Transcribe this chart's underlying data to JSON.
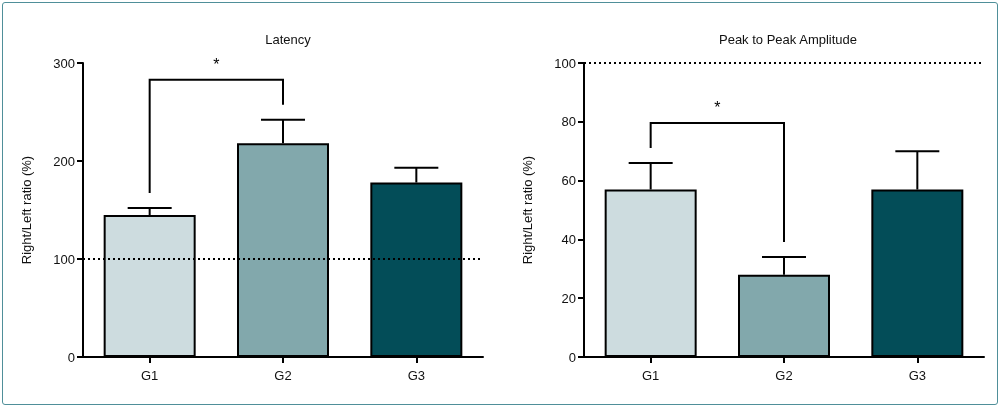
{
  "chart_data": [
    {
      "type": "bar",
      "title": "Latency",
      "ylabel": "Right/Left ratio (%)",
      "categories": [
        "G1",
        "G2",
        "G3"
      ],
      "values": [
        145,
        218,
        178
      ],
      "colors": [
        "#cddcdf",
        "#82a8ac",
        "#034d58"
      ],
      "errors": [
        [
          145,
          152
        ],
        [
          218,
          242
        ],
        [
          178,
          193
        ]
      ],
      "ylim": [
        0,
        300
      ],
      "yticks": [
        0,
        100,
        200,
        300
      ],
      "grid": false,
      "ref_lines": [
        {
          "axis": "y",
          "value": 100,
          "line_style": "dotted",
          "color": "#000000"
        }
      ],
      "annotations": [
        "*"
      ]
    },
    {
      "type": "bar",
      "title": "Peak to Peak Amplitude",
      "ylabel": "Right/Left ratio (%)",
      "categories": [
        "G1",
        "G2",
        "G3"
      ],
      "values": [
        57,
        28,
        57
      ],
      "colors": [
        "#cddcdf",
        "#82a8ac",
        "#034d58"
      ],
      "errors": [
        [
          57,
          66
        ],
        [
          28,
          34
        ],
        [
          57,
          70
        ]
      ],
      "ylim": [
        0,
        100
      ],
      "yticks": [
        0,
        20,
        40,
        60,
        80,
        100
      ],
      "grid": false,
      "ref_lines": [
        {
          "axis": "y",
          "value": 100,
          "line_style": "dotted",
          "color": "#000000"
        }
      ],
      "annotations": [
        "*"
      ]
    }
  ]
}
